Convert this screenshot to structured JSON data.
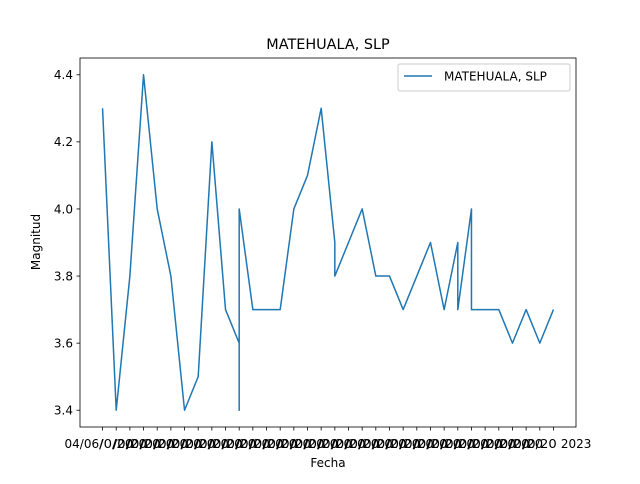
{
  "chart_data": {
    "type": "line",
    "title": "MATEHUALA, SLP",
    "xlabel": "Fecha",
    "ylabel": "Magnitud",
    "ylim": [
      3.35,
      4.45
    ],
    "yticks": [
      3.4,
      3.6,
      3.8,
      4.0,
      4.2,
      4.4
    ],
    "ytick_labels": [
      "3.4",
      "3.6",
      "3.8",
      "4.0",
      "4.2",
      "4.4"
    ],
    "xtick_labels_note": "33 overlapping date tick labels; only the first and last are legible",
    "xtick_first_label": "04/06/",
    "xtick_last_label": "2023",
    "legend_position": "upper-right",
    "color": "#1f77b4",
    "series": [
      {
        "name": "MATEHUALA, SLP",
        "points": [
          {
            "x": 0,
            "y": 4.3
          },
          {
            "x": 1,
            "y": 3.4
          },
          {
            "x": 2,
            "y": 3.8
          },
          {
            "x": 3,
            "y": 4.4
          },
          {
            "x": 4,
            "y": 4.0
          },
          {
            "x": 5,
            "y": 3.8
          },
          {
            "x": 6,
            "y": 3.4
          },
          {
            "x": 7,
            "y": 3.5
          },
          {
            "x": 8,
            "y": 4.2
          },
          {
            "x": 9,
            "y": 3.7
          },
          {
            "x": 10,
            "y": 3.6
          },
          {
            "x": 10,
            "y": 3.4
          },
          {
            "x": 10,
            "y": 4.0
          },
          {
            "x": 11,
            "y": 3.7
          },
          {
            "x": 12,
            "y": 3.7
          },
          {
            "x": 13,
            "y": 3.7
          },
          {
            "x": 14,
            "y": 4.0
          },
          {
            "x": 15,
            "y": 4.1
          },
          {
            "x": 16,
            "y": 4.3
          },
          {
            "x": 17,
            "y": 3.9
          },
          {
            "x": 17,
            "y": 3.8
          },
          {
            "x": 18,
            "y": 3.9
          },
          {
            "x": 19,
            "y": 4.0
          },
          {
            "x": 20,
            "y": 3.8
          },
          {
            "x": 21,
            "y": 3.8
          },
          {
            "x": 22,
            "y": 3.7
          },
          {
            "x": 23,
            "y": 3.8
          },
          {
            "x": 24,
            "y": 3.9
          },
          {
            "x": 25,
            "y": 3.7
          },
          {
            "x": 26,
            "y": 3.9
          },
          {
            "x": 26,
            "y": 3.7
          },
          {
            "x": 27,
            "y": 4.0
          },
          {
            "x": 27,
            "y": 3.7
          },
          {
            "x": 28,
            "y": 3.7
          },
          {
            "x": 29,
            "y": 3.7
          },
          {
            "x": 30,
            "y": 3.6
          },
          {
            "x": 31,
            "y": 3.7
          },
          {
            "x": 32,
            "y": 3.6
          },
          {
            "x": 33,
            "y": 3.7
          }
        ]
      }
    ]
  }
}
